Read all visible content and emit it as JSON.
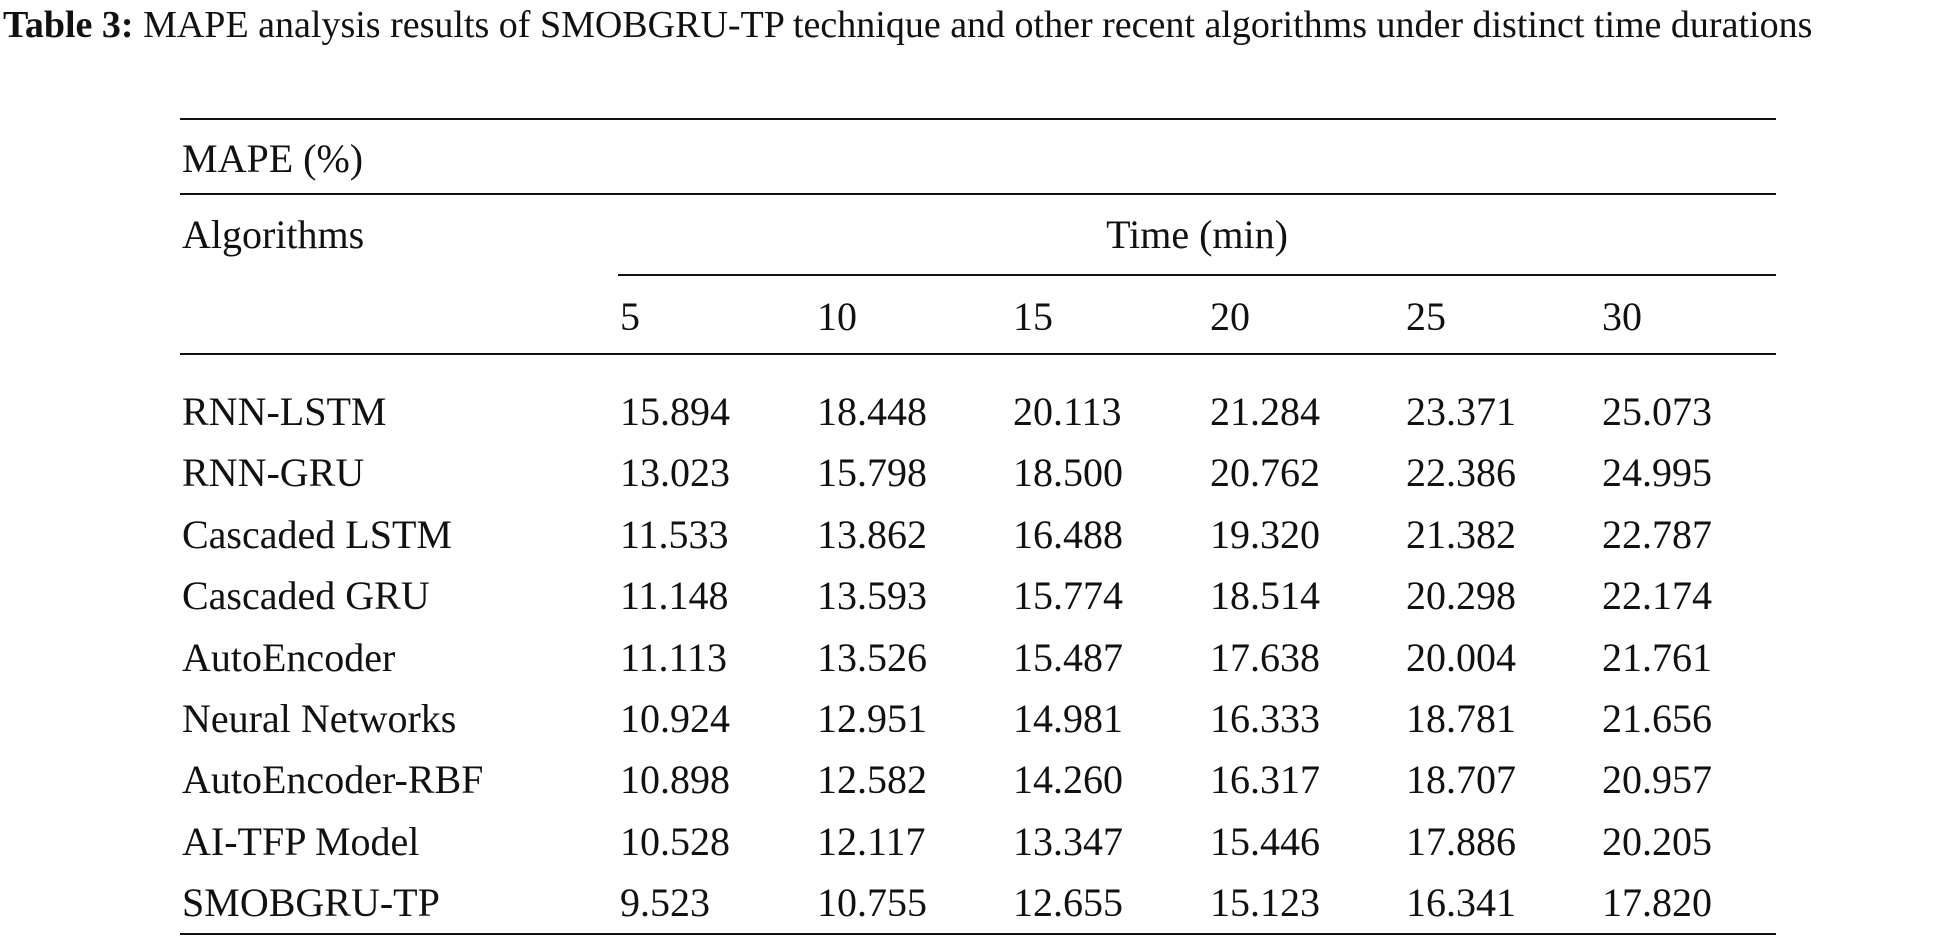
{
  "caption": {
    "label": "Table 3:",
    "text": " MAPE analysis results of SMOBGRU-TP technique and other recent algorithms under distinct time durations"
  },
  "table": {
    "metric_header": "MAPE (%)",
    "row_header": "Algorithms",
    "group_header": "Time (min)",
    "columns": [
      "5",
      "10",
      "15",
      "20",
      "25",
      "30"
    ],
    "rows": [
      {
        "algorithm": "RNN-LSTM",
        "values": [
          "15.894",
          "18.448",
          "20.113",
          "21.284",
          "23.371",
          "25.073"
        ]
      },
      {
        "algorithm": "RNN-GRU",
        "values": [
          "13.023",
          "15.798",
          "18.500",
          "20.762",
          "22.386",
          "24.995"
        ]
      },
      {
        "algorithm": "Cascaded LSTM",
        "values": [
          "11.533",
          "13.862",
          "16.488",
          "19.320",
          "21.382",
          "22.787"
        ]
      },
      {
        "algorithm": "Cascaded GRU",
        "values": [
          "11.148",
          "13.593",
          "15.774",
          "18.514",
          "20.298",
          "22.174"
        ]
      },
      {
        "algorithm": "AutoEncoder",
        "values": [
          "11.113",
          "13.526",
          "15.487",
          "17.638",
          "20.004",
          "21.761"
        ]
      },
      {
        "algorithm": "Neural Networks",
        "values": [
          "10.924",
          "12.951",
          "14.981",
          "16.333",
          "18.781",
          "21.656"
        ]
      },
      {
        "algorithm": "AutoEncoder-RBF",
        "values": [
          "10.898",
          "12.582",
          "14.260",
          "16.317",
          "18.707",
          "20.957"
        ]
      },
      {
        "algorithm": "AI-TFP Model",
        "values": [
          "10.528",
          "12.117",
          "13.347",
          "15.446",
          "17.886",
          "20.205"
        ]
      },
      {
        "algorithm": "SMOBGRU-TP",
        "values": [
          "9.523",
          "10.755",
          "12.655",
          "15.123",
          "16.341",
          "17.820"
        ]
      }
    ]
  }
}
